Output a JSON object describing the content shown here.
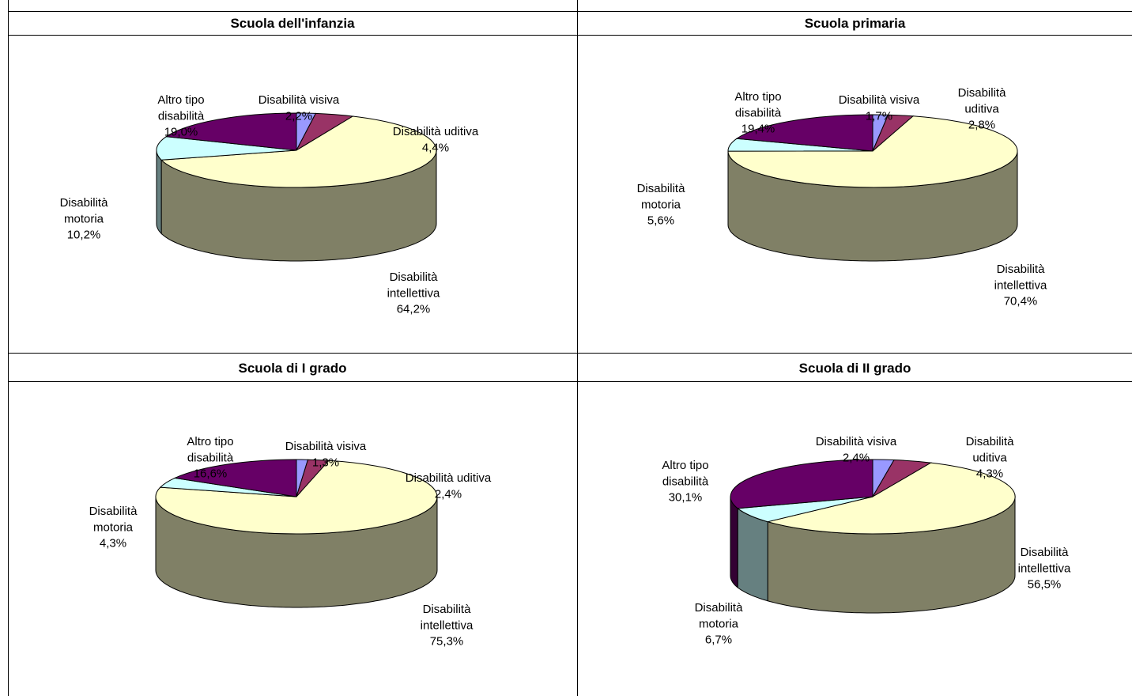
{
  "colors": {
    "Disabilità visiva": "#9999ff",
    "Disabilità uditiva": "#993366",
    "Disabilità intellettiva": "#ffffcc",
    "Disabilità motoria": "#ccffff",
    "Altro tipo disabilità": "#660066"
  },
  "chart_data": [
    {
      "type": "pie",
      "title": "Scuola dell'infanzia",
      "slices": [
        {
          "name": "Disabilità visiva",
          "value": 2.2,
          "label": [
            "Disabilità visiva",
            "2,2%"
          ]
        },
        {
          "name": "Disabilità uditiva",
          "value": 4.4,
          "label": [
            "Disabilità uditiva",
            "4,4%"
          ]
        },
        {
          "name": "Disabilità intellettiva",
          "value": 64.2,
          "label": [
            "Disabilità",
            "intellettiva",
            "64,2%"
          ]
        },
        {
          "name": "Disabilità motoria",
          "value": 10.2,
          "label": [
            "Disabilità",
            "motoria",
            "10,2%"
          ]
        },
        {
          "name": "Altro tipo disabilità",
          "value": 19.0,
          "label": [
            "Altro tipo",
            "disabilità",
            "19,0%"
          ]
        }
      ]
    },
    {
      "type": "pie",
      "title": "Scuola primaria",
      "slices": [
        {
          "name": "Disabilità visiva",
          "value": 1.7,
          "label": [
            "Disabilità visiva",
            "1,7%"
          ]
        },
        {
          "name": "Disabilità uditiva",
          "value": 2.8,
          "label": [
            "Disabilità",
            "uditiva",
            "2,8%"
          ]
        },
        {
          "name": "Disabilità intellettiva",
          "value": 70.4,
          "label": [
            "Disabilità",
            "intellettiva",
            "70,4%"
          ]
        },
        {
          "name": "Disabilità motoria",
          "value": 5.6,
          "label": [
            "Disabilità",
            "motoria",
            "5,6%"
          ]
        },
        {
          "name": "Altro tipo disabilità",
          "value": 19.4,
          "label": [
            "Altro tipo",
            "disabilità",
            "19,4%"
          ]
        }
      ]
    },
    {
      "type": "pie",
      "title": "Scuola di I grado",
      "slices": [
        {
          "name": "Disabilità visiva",
          "value": 1.3,
          "label": [
            "Disabilità visiva",
            "1,3%"
          ]
        },
        {
          "name": "Disabilità uditiva",
          "value": 2.4,
          "label": [
            "Disabilità uditiva",
            "2,4%"
          ]
        },
        {
          "name": "Disabilità intellettiva",
          "value": 75.3,
          "label": [
            "Disabilità",
            "intellettiva",
            "75,3%"
          ]
        },
        {
          "name": "Disabilità motoria",
          "value": 4.3,
          "label": [
            "Disabilità",
            "motoria",
            "4,3%"
          ]
        },
        {
          "name": "Altro tipo disabilità",
          "value": 16.6,
          "label": [
            "Altro tipo",
            "disabilità",
            "16,6%"
          ]
        }
      ]
    },
    {
      "type": "pie",
      "title": "Scuola di II grado",
      "slices": [
        {
          "name": "Disabilità visiva",
          "value": 2.4,
          "label": [
            "Disabilità visiva",
            "2,4%"
          ]
        },
        {
          "name": "Disabilità uditiva",
          "value": 4.3,
          "label": [
            "Disabilità",
            "uditiva",
            "4,3%"
          ]
        },
        {
          "name": "Disabilità intellettiva",
          "value": 56.5,
          "label": [
            "Disabilità",
            "intellettiva",
            "56,5%"
          ]
        },
        {
          "name": "Disabilità motoria",
          "value": 6.7,
          "label": [
            "Disabilità",
            "motoria",
            "6,7%"
          ]
        },
        {
          "name": "Altro tipo disabilità",
          "value": 30.1,
          "label": [
            "Altro tipo",
            "disabilità",
            "30,1%"
          ]
        }
      ]
    }
  ]
}
